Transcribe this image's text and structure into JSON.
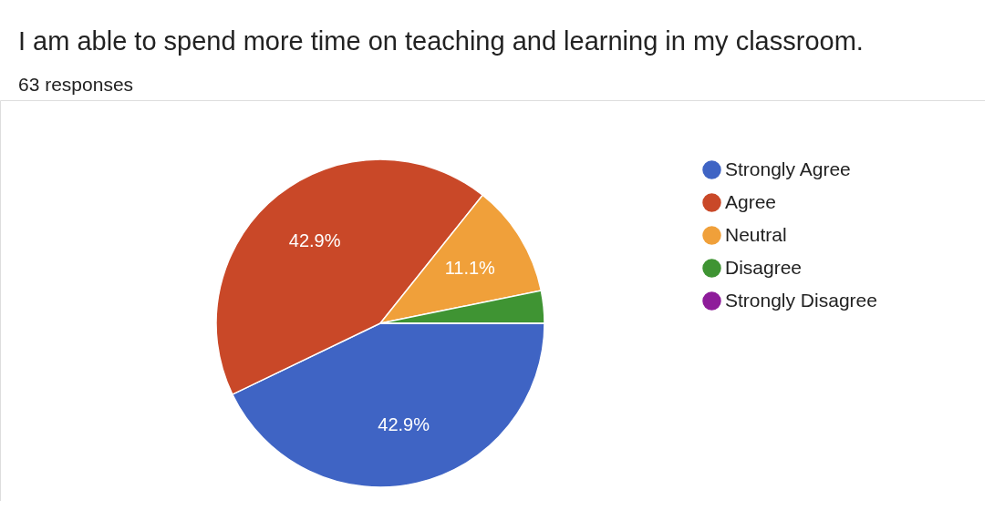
{
  "chart_data": {
    "type": "pie",
    "title": "I am able to spend more time on teaching and learning in my classroom.",
    "subtitle": "63 responses",
    "categories": [
      "Strongly Agree",
      "Agree",
      "Neutral",
      "Disagree",
      "Strongly Disagree"
    ],
    "values": [
      42.9,
      42.9,
      11.1,
      3.2,
      0
    ],
    "colors": [
      "#3f64c4",
      "#c94828",
      "#f0a03a",
      "#3f9433",
      "#8e1c9a"
    ],
    "value_labels": [
      "42.9%",
      "42.9%",
      "11.1%",
      null,
      null
    ],
    "legend": "right"
  }
}
